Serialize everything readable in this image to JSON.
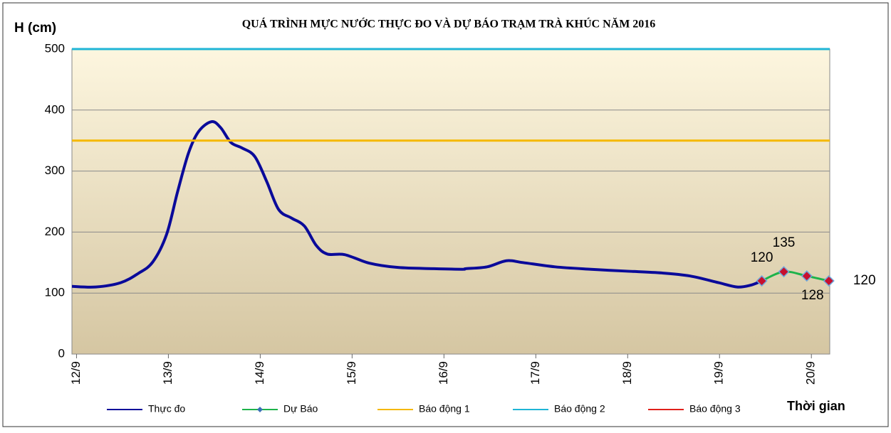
{
  "chart_data": {
    "type": "line",
    "title": "QUÁ TRÌNH MỰC NƯỚC THỰC ĐO VÀ DỰ BÁO TRẠM TRÀ KHÚC NĂM 2016",
    "ylabel": "H (cm)",
    "xlabel": "Thời gian",
    "xlim": [
      11.95,
      20.2
    ],
    "ylim": [
      0,
      500
    ],
    "yticks": [
      0,
      100,
      200,
      300,
      400,
      500
    ],
    "xticks": [
      {
        "value": 12,
        "label": "12/9"
      },
      {
        "value": 13,
        "label": "13/9"
      },
      {
        "value": 14,
        "label": "14/9"
      },
      {
        "value": 15,
        "label": "15/9"
      },
      {
        "value": 16,
        "label": "16/9"
      },
      {
        "value": 17,
        "label": "17/9"
      },
      {
        "value": 18,
        "label": "18/9"
      },
      {
        "value": 19,
        "label": "19/9"
      },
      {
        "value": 20,
        "label": "20/9"
      }
    ],
    "grid": true,
    "series": [
      {
        "name": "Thực đo",
        "color": "#0a0a9a",
        "x": [
          11.95,
          12.21,
          12.48,
          12.67,
          12.83,
          12.98,
          13.1,
          13.22,
          13.33,
          13.47,
          13.57,
          13.68,
          13.8,
          13.94,
          14.07,
          14.2,
          14.34,
          14.48,
          14.61,
          14.73,
          14.92,
          15.19,
          15.5,
          15.89,
          16.2,
          16.24,
          16.47,
          16.68,
          16.86,
          17.21,
          17.6,
          17.98,
          18.37,
          18.68,
          18.99,
          19.19,
          19.34,
          19.46
        ],
        "values": [
          111,
          110,
          117,
          132,
          151,
          196,
          266,
          330,
          365,
          381,
          371,
          347,
          338,
          324,
          283,
          237,
          223,
          210,
          178,
          164,
          163,
          149,
          142,
          140,
          139,
          140,
          143,
          153,
          150,
          143,
          139,
          136,
          133,
          128,
          117,
          110,
          113,
          120
        ]
      },
      {
        "name": "Dự Báo",
        "color": "#1db34a",
        "marker_color": "#c8102e",
        "x": [
          19.46,
          19.7,
          19.95,
          20.19
        ],
        "values": [
          120,
          135,
          128,
          120
        ]
      },
      {
        "name": "Báo động 1",
        "color": "#f5b800",
        "level": 350
      },
      {
        "name": "Báo động 2",
        "color": "#1fb5d6",
        "level": 500
      },
      {
        "name": "Báo động 3",
        "color": "#e0201b"
      }
    ]
  }
}
